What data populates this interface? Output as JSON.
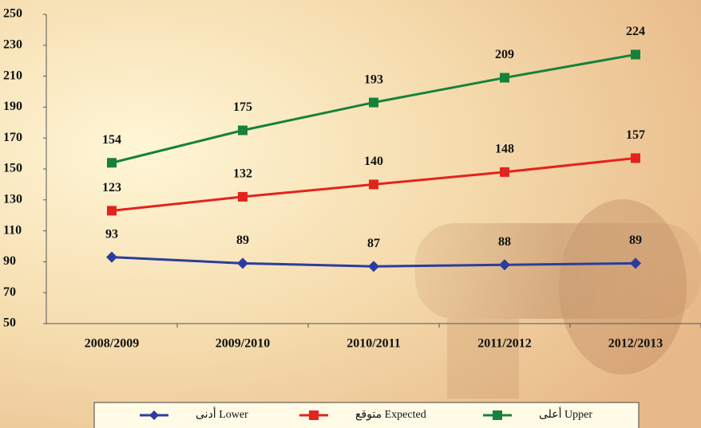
{
  "chart_data": {
    "type": "line",
    "categories": [
      "2008/2009",
      "2009/2010",
      "2010/2011",
      "2011/2012",
      "2012/2013"
    ],
    "series": [
      {
        "name": "أدنى Lower",
        "color": "#2b3d9c",
        "marker": "diamond",
        "values": [
          93,
          89,
          87,
          88,
          89
        ]
      },
      {
        "name": "متوقع  Expected",
        "color": "#e3231d",
        "marker": "square",
        "values": [
          123,
          132,
          140,
          148,
          157
        ]
      },
      {
        "name": "أعلى Upper",
        "color": "#17813a",
        "marker": "square",
        "values": [
          154,
          175,
          193,
          209,
          224
        ]
      }
    ],
    "ylim": [
      50,
      250
    ],
    "yticks": [
      50,
      70,
      90,
      110,
      130,
      150,
      170,
      190,
      210,
      230,
      250
    ],
    "legend": "bottom"
  }
}
